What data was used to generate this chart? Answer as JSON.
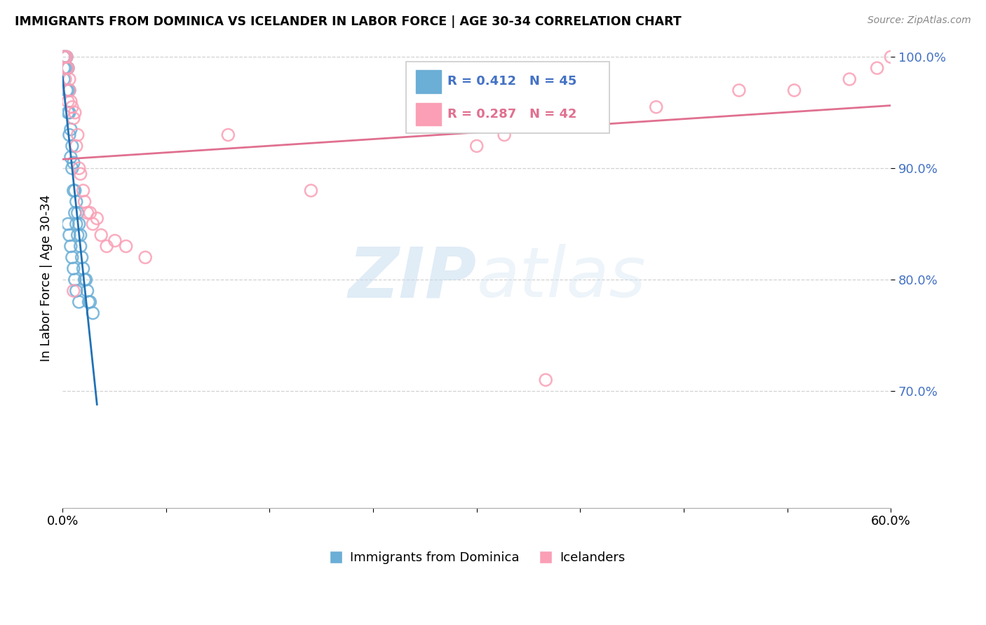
{
  "title": "IMMIGRANTS FROM DOMINICA VS ICELANDER IN LABOR FORCE | AGE 30-34 CORRELATION CHART",
  "source": "Source: ZipAtlas.com",
  "ylabel": "In Labor Force | Age 30-34",
  "legend_labels": [
    "Immigrants from Dominica",
    "Icelanders"
  ],
  "blue_R": 0.412,
  "blue_N": 45,
  "pink_R": 0.287,
  "pink_N": 42,
  "blue_color": "#6baed6",
  "pink_color": "#fa9fb5",
  "blue_line_color": "#2171b5",
  "pink_line_color": "#e07090",
  "watermark_zip": "ZIP",
  "watermark_atlas": "atlas",
  "xlim": [
    0.0,
    0.6
  ],
  "ylim": [
    0.595,
    1.008
  ],
  "yticks": [
    0.7,
    0.8,
    0.9,
    1.0
  ],
  "xtick_positions": [
    0.0,
    0.075,
    0.15,
    0.225,
    0.3,
    0.375,
    0.45,
    0.525,
    0.6
  ],
  "blue_x": [
    0.001,
    0.001,
    0.001,
    0.002,
    0.002,
    0.003,
    0.003,
    0.003,
    0.004,
    0.004,
    0.004,
    0.005,
    0.005,
    0.005,
    0.006,
    0.006,
    0.007,
    0.007,
    0.008,
    0.008,
    0.009,
    0.009,
    0.01,
    0.01,
    0.011,
    0.011,
    0.012,
    0.013,
    0.013,
    0.014,
    0.015,
    0.016,
    0.017,
    0.018,
    0.019,
    0.02,
    0.022,
    0.004,
    0.005,
    0.006,
    0.007,
    0.008,
    0.009,
    0.01,
    0.012
  ],
  "blue_y": [
    1.0,
    0.99,
    0.98,
    1.0,
    0.99,
    1.0,
    0.99,
    0.97,
    0.99,
    0.97,
    0.95,
    0.97,
    0.95,
    0.93,
    0.935,
    0.91,
    0.92,
    0.9,
    0.905,
    0.88,
    0.88,
    0.86,
    0.87,
    0.85,
    0.86,
    0.84,
    0.85,
    0.84,
    0.83,
    0.82,
    0.81,
    0.8,
    0.8,
    0.79,
    0.78,
    0.78,
    0.77,
    0.85,
    0.84,
    0.83,
    0.82,
    0.81,
    0.8,
    0.79,
    0.78
  ],
  "pink_x": [
    0.001,
    0.002,
    0.003,
    0.003,
    0.004,
    0.005,
    0.005,
    0.006,
    0.007,
    0.008,
    0.009,
    0.01,
    0.011,
    0.012,
    0.013,
    0.015,
    0.016,
    0.018,
    0.02,
    0.022,
    0.025,
    0.028,
    0.032,
    0.038,
    0.046,
    0.06,
    0.12,
    0.18,
    0.3,
    0.32,
    0.38,
    0.43,
    0.49,
    0.53,
    0.57,
    0.59,
    0.6,
    0.61,
    0.002,
    0.004,
    0.008,
    0.35
  ],
  "pink_y": [
    1.0,
    1.0,
    1.0,
    0.99,
    0.99,
    0.98,
    0.97,
    0.96,
    0.955,
    0.945,
    0.95,
    0.92,
    0.93,
    0.9,
    0.895,
    0.88,
    0.87,
    0.86,
    0.86,
    0.85,
    0.855,
    0.84,
    0.83,
    0.835,
    0.83,
    0.82,
    0.93,
    0.88,
    0.92,
    0.93,
    0.945,
    0.955,
    0.97,
    0.97,
    0.98,
    0.99,
    1.0,
    0.99,
    0.98,
    0.96,
    0.79,
    0.71
  ]
}
